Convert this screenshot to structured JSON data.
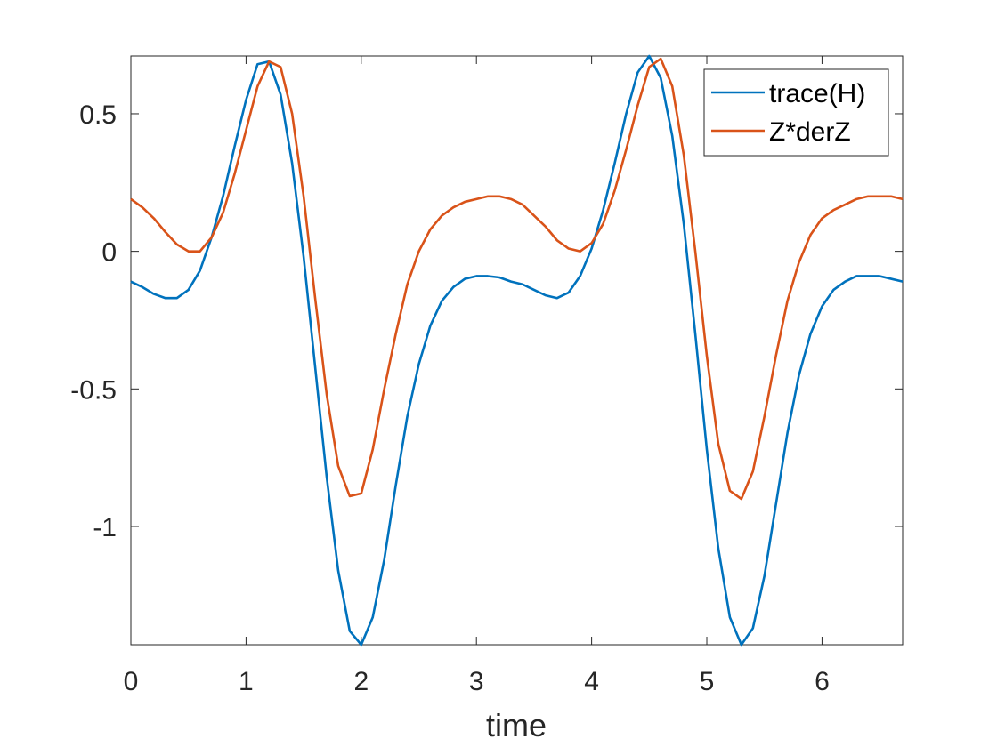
{
  "chart_data": {
    "type": "line",
    "xlabel": "time",
    "x": [
      0.0,
      0.1,
      0.2,
      0.3,
      0.4,
      0.5,
      0.6,
      0.7,
      0.8,
      0.9,
      1.0,
      1.1,
      1.2,
      1.3,
      1.4,
      1.5,
      1.6,
      1.7,
      1.8,
      1.9,
      2.0,
      2.1,
      2.2,
      2.3,
      2.4,
      2.5,
      2.6,
      2.7,
      2.8,
      2.9,
      3.0,
      3.1,
      3.2,
      3.3,
      3.4,
      3.5,
      3.6,
      3.7,
      3.8,
      3.9,
      4.0,
      4.1,
      4.2,
      4.3,
      4.4,
      4.5,
      4.6,
      4.7,
      4.8,
      4.9,
      5.0,
      5.1,
      5.2,
      5.3,
      5.4,
      5.5,
      5.6,
      5.7,
      5.8,
      5.9,
      6.0,
      6.1,
      6.2,
      6.3,
      6.4,
      6.5,
      6.6,
      6.7
    ],
    "series": [
      {
        "name": "trace(H)",
        "color": "#0072bd",
        "values": [
          -0.11,
          -0.13,
          -0.155,
          -0.17,
          -0.17,
          -0.14,
          -0.07,
          0.05,
          0.2,
          0.38,
          0.55,
          0.68,
          0.69,
          0.57,
          0.32,
          -0.02,
          -0.42,
          -0.82,
          -1.16,
          -1.38,
          -1.43,
          -1.33,
          -1.12,
          -0.85,
          -0.6,
          -0.41,
          -0.27,
          -0.18,
          -0.13,
          -0.1,
          -0.09,
          -0.09,
          -0.095,
          -0.11,
          -0.12,
          -0.14,
          -0.16,
          -0.17,
          -0.15,
          -0.09,
          0.01,
          0.15,
          0.32,
          0.5,
          0.65,
          0.71,
          0.63,
          0.42,
          0.1,
          -0.3,
          -0.72,
          -1.08,
          -1.33,
          -1.43,
          -1.37,
          -1.18,
          -0.92,
          -0.66,
          -0.45,
          -0.3,
          -0.2,
          -0.14,
          -0.11,
          -0.09,
          -0.09,
          -0.09,
          -0.1,
          -0.11
        ]
      },
      {
        "name": "Z*derZ",
        "color": "#d95319",
        "values": [
          0.19,
          0.16,
          0.12,
          0.07,
          0.025,
          0.0,
          0.0,
          0.05,
          0.14,
          0.28,
          0.44,
          0.6,
          0.69,
          0.67,
          0.5,
          0.2,
          -0.17,
          -0.52,
          -0.78,
          -0.89,
          -0.88,
          -0.72,
          -0.5,
          -0.3,
          -0.12,
          0.0,
          0.08,
          0.13,
          0.16,
          0.18,
          0.19,
          0.2,
          0.2,
          0.19,
          0.17,
          0.13,
          0.09,
          0.04,
          0.01,
          0.0,
          0.03,
          0.1,
          0.22,
          0.37,
          0.53,
          0.67,
          0.7,
          0.6,
          0.35,
          0.0,
          -0.38,
          -0.7,
          -0.87,
          -0.9,
          -0.8,
          -0.6,
          -0.38,
          -0.18,
          -0.04,
          0.06,
          0.12,
          0.15,
          0.17,
          0.19,
          0.2,
          0.2,
          0.2,
          0.19
        ]
      }
    ],
    "xlim": [
      0,
      6.7
    ],
    "ylim": [
      -1.43,
      0.71
    ],
    "xticks": [
      0,
      1,
      2,
      3,
      4,
      5,
      6
    ],
    "yticks": [
      -1,
      -0.5,
      0,
      0.5
    ],
    "legend": "top-right",
    "grid": false
  }
}
